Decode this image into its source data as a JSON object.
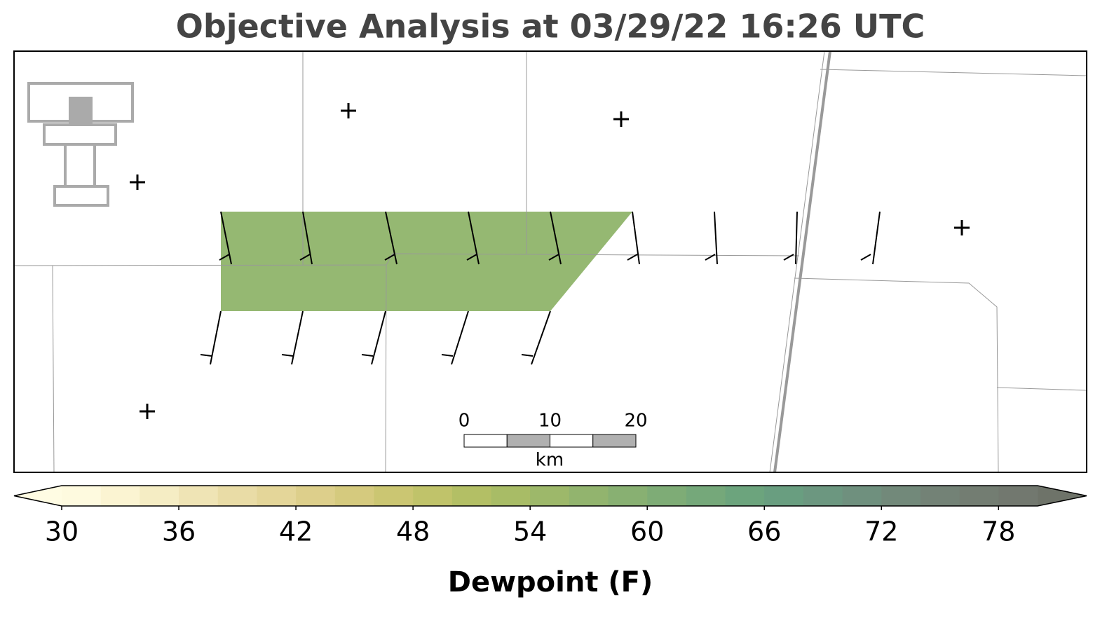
{
  "title": "Objective Analysis at 03/29/22 16:26 UTC",
  "colorbar": {
    "label": "Dewpoint (F)",
    "range": [
      30,
      80
    ],
    "ticks": [
      30,
      36,
      42,
      48,
      54,
      60,
      66,
      72,
      78
    ],
    "colors": [
      "#fefadf",
      "#fbf4d2",
      "#f5edc4",
      "#efe4b5",
      "#e9dca6",
      "#e4d699",
      "#ddcf8b",
      "#d5ca7e",
      "#cbc672",
      "#c0c36a",
      "#b3bf65",
      "#a8bc66",
      "#9db86a",
      "#92b46e",
      "#88b072",
      "#7eac76",
      "#75a87a",
      "#6ca47d",
      "#699e80",
      "#6c9780",
      "#6f907e",
      "#72897a",
      "#738276",
      "#737d72",
      "#72786f"
    ],
    "under_color": "#fffce3",
    "over_color": "#6e7369"
  },
  "scale_bar": {
    "ticks": [
      0,
      10,
      20
    ],
    "unit": "km"
  }
}
